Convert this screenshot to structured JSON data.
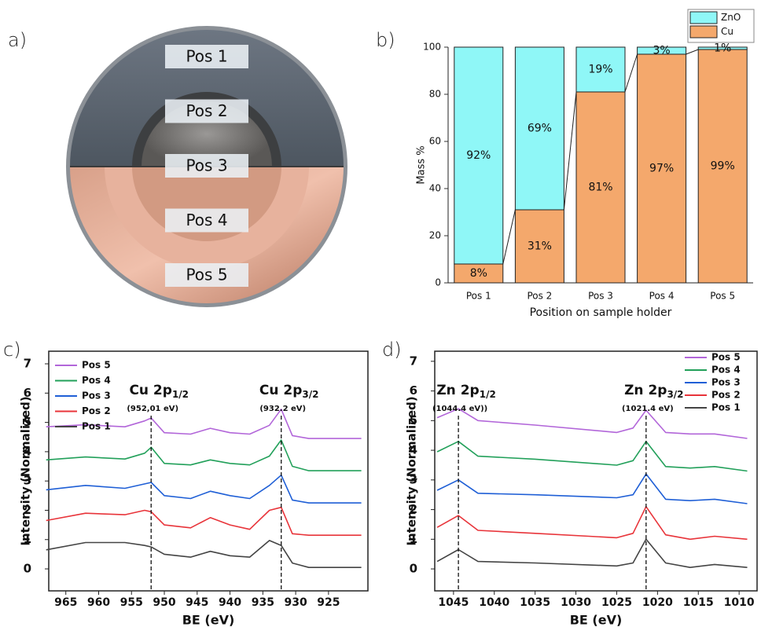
{
  "panel_labels": [
    "a)",
    "b)",
    "c)",
    "d)"
  ],
  "photo": {
    "labels": [
      "Pos 1",
      "Pos 2",
      "Pos 3",
      "Pos 4",
      "Pos 5"
    ]
  },
  "chart_data": [
    {
      "type": "bar",
      "stacked": true,
      "xlabel": "Position on sample holder",
      "ylabel": "Mass %",
      "categories": [
        "Pos 1",
        "Pos 2",
        "Pos 3",
        "Pos 4",
        "Pos 5"
      ],
      "series": [
        {
          "name": "Cu",
          "color": "#f4a86c",
          "values": [
            8,
            31,
            81,
            97,
            99
          ],
          "value_labels": [
            "8%",
            "31%",
            "81%",
            "97%",
            "99%"
          ]
        },
        {
          "name": "ZnO",
          "color": "#8ff7f7",
          "values": [
            92,
            69,
            19,
            3,
            1
          ],
          "value_labels": [
            "92%",
            "69%",
            "19%",
            "3%",
            "1%"
          ]
        }
      ],
      "ylim": [
        0,
        100
      ],
      "yticks": [
        0,
        20,
        40,
        60,
        80,
        100
      ],
      "connectors": true,
      "legend": "upper right"
    },
    {
      "type": "line",
      "xlabel": "BE (eV)",
      "ylabel": "Intensity (Normalized)",
      "x": [
        968,
        962,
        956,
        953,
        952,
        950,
        946,
        943,
        940,
        937,
        934,
        932.2,
        930.5,
        928,
        924,
        920
      ],
      "series": [
        {
          "name": "Pos 5",
          "color": "#b266d9",
          "values": [
            4.85,
            4.92,
            4.85,
            5.05,
            5.15,
            4.65,
            4.6,
            4.8,
            4.65,
            4.6,
            4.9,
            5.45,
            4.55,
            4.45,
            4.45,
            4.45
          ]
        },
        {
          "name": "Pos 4",
          "color": "#22a05a",
          "values": [
            3.72,
            3.82,
            3.75,
            3.95,
            4.15,
            3.6,
            3.55,
            3.72,
            3.6,
            3.55,
            3.85,
            4.4,
            3.5,
            3.35,
            3.35,
            3.35
          ]
        },
        {
          "name": "Pos 3",
          "color": "#1f5fd6",
          "values": [
            2.7,
            2.85,
            2.75,
            2.9,
            2.95,
            2.5,
            2.4,
            2.65,
            2.5,
            2.4,
            2.85,
            3.2,
            2.35,
            2.25,
            2.25,
            2.25
          ]
        },
        {
          "name": "Pos 2",
          "color": "#e8343a",
          "values": [
            1.65,
            1.9,
            1.85,
            2.0,
            1.95,
            1.5,
            1.4,
            1.75,
            1.5,
            1.35,
            2.0,
            2.1,
            1.2,
            1.15,
            1.15,
            1.15
          ]
        },
        {
          "name": "Pos 1",
          "color": "#444444",
          "values": [
            0.65,
            0.9,
            0.9,
            0.8,
            0.75,
            0.5,
            0.4,
            0.6,
            0.45,
            0.4,
            0.97,
            0.8,
            0.2,
            0.05,
            0.05,
            0.05
          ]
        }
      ],
      "xlim": [
        967.6,
        919
      ],
      "ylim": [
        -0.75,
        7.43
      ],
      "xticks": [
        965,
        960,
        955,
        950,
        945,
        940,
        935,
        930,
        925
      ],
      "yticks": [
        0,
        1,
        2,
        3,
        4,
        5,
        6,
        7
      ],
      "legend": "upper left",
      "annotations": [
        {
          "label": "Cu 2p",
          "sub": "1/2",
          "note": "(952,01 eV)",
          "x": 952.01
        },
        {
          "label": "Cu 2p",
          "sub": "3/2",
          "note": "(932.2 eV)",
          "x": 932.2
        }
      ]
    },
    {
      "type": "line",
      "xlabel": "BE (eV)",
      "ylabel": "Intensity (Normalized)",
      "x": [
        1047,
        1044.4,
        1042,
        1035,
        1025,
        1023,
        1021.4,
        1019,
        1016,
        1013,
        1009
      ],
      "series": [
        {
          "name": "Pos 5",
          "color": "#b266d9",
          "values": [
            5.1,
            5.4,
            5.0,
            4.85,
            4.6,
            4.75,
            5.35,
            4.6,
            4.55,
            4.55,
            4.4
          ]
        },
        {
          "name": "Pos 4",
          "color": "#22a05a",
          "values": [
            3.95,
            4.3,
            3.8,
            3.7,
            3.5,
            3.65,
            4.3,
            3.45,
            3.4,
            3.45,
            3.3
          ]
        },
        {
          "name": "Pos 3",
          "color": "#1f5fd6",
          "values": [
            2.65,
            3.0,
            2.55,
            2.5,
            2.4,
            2.5,
            3.2,
            2.35,
            2.3,
            2.35,
            2.2
          ]
        },
        {
          "name": "Pos 2",
          "color": "#e8343a",
          "values": [
            1.4,
            1.8,
            1.3,
            1.2,
            1.05,
            1.2,
            2.1,
            1.15,
            1.0,
            1.1,
            1.0
          ]
        },
        {
          "name": "Pos 1",
          "color": "#444444",
          "values": [
            0.25,
            0.65,
            0.25,
            0.2,
            0.1,
            0.2,
            1.0,
            0.2,
            0.05,
            0.15,
            0.05
          ]
        }
      ],
      "xlim": [
        1047.3,
        1007.8
      ],
      "ylim": [
        -0.74,
        7.34
      ],
      "xticks": [
        1045,
        1040,
        1035,
        1030,
        1025,
        1020,
        1015,
        1010
      ],
      "yticks": [
        0,
        1,
        2,
        3,
        4,
        5,
        6,
        7
      ],
      "legend": "upper right",
      "annotations": [
        {
          "label": "Zn 2p",
          "sub": "1/2",
          "note": "(1044.4 eV))",
          "x": 1044.4
        },
        {
          "label": "Zn 2p",
          "sub": "3/2",
          "note": "(1021.4 eV)",
          "x": 1021.4
        }
      ]
    }
  ]
}
